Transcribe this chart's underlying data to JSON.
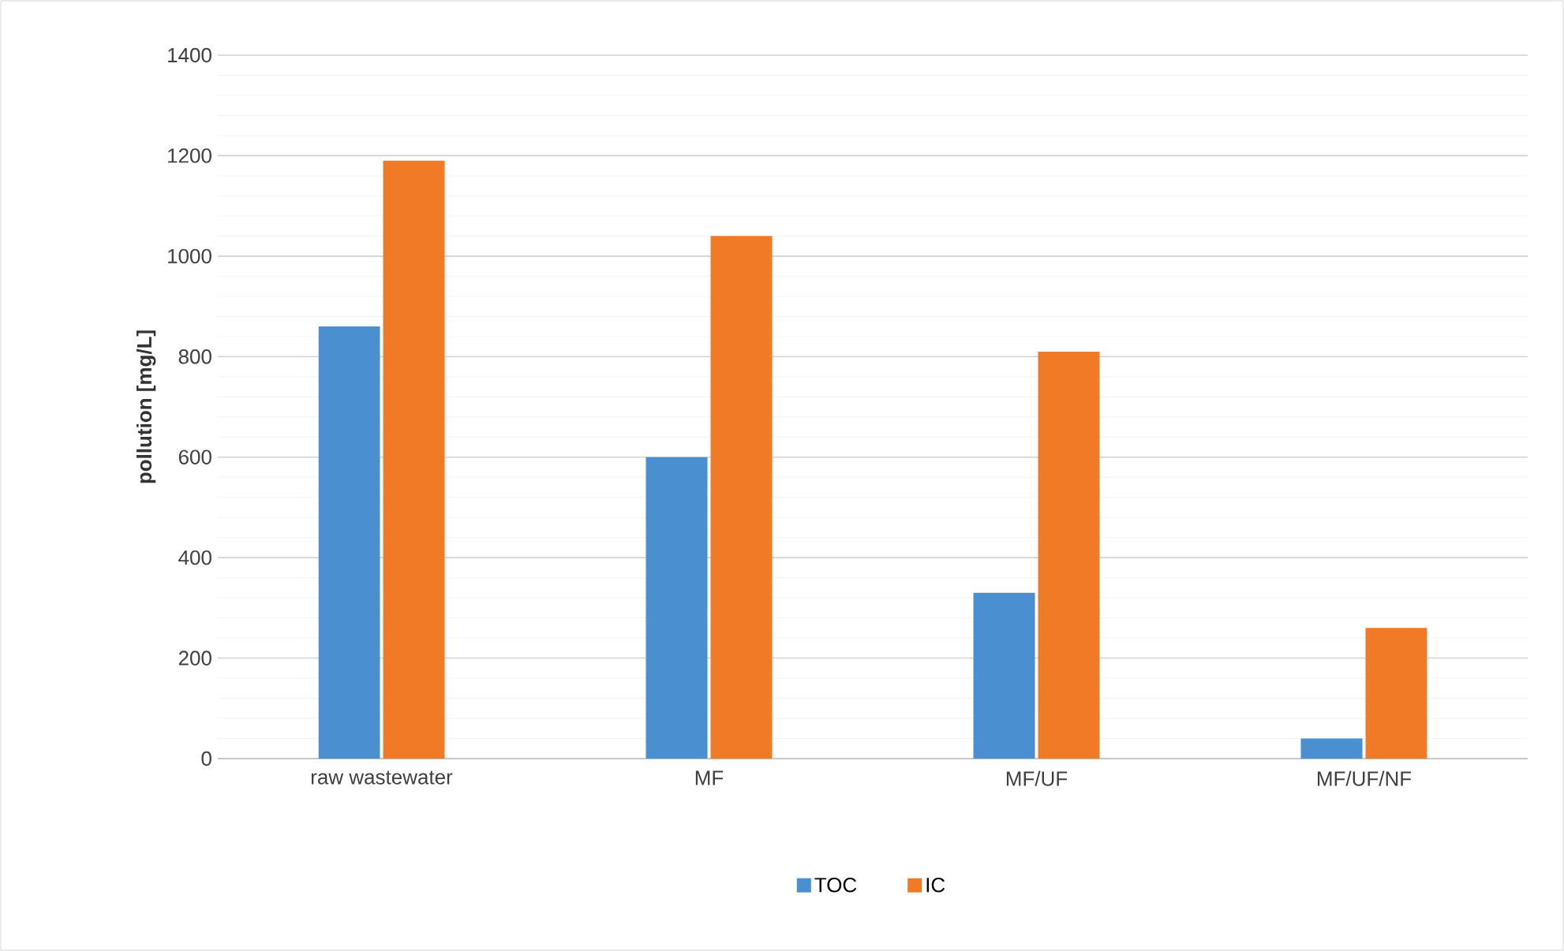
{
  "chart_data": {
    "type": "bar",
    "ylabel": "pollution [mg/L]",
    "categories": [
      "raw wastewater",
      "MF",
      "MF/UF",
      "MF/UF/NF"
    ],
    "series": [
      {
        "name": "TOC",
        "color": "#4a8fd0",
        "values": [
          860,
          600,
          330,
          40
        ]
      },
      {
        "name": "IC",
        "color": "#f07a26",
        "values": [
          1190,
          1040,
          810,
          260
        ]
      }
    ],
    "ylim": [
      0,
      1400
    ],
    "yticks": [
      0,
      200,
      400,
      600,
      800,
      1000,
      1200,
      1400
    ],
    "grid": "y",
    "legend": "bottom"
  }
}
